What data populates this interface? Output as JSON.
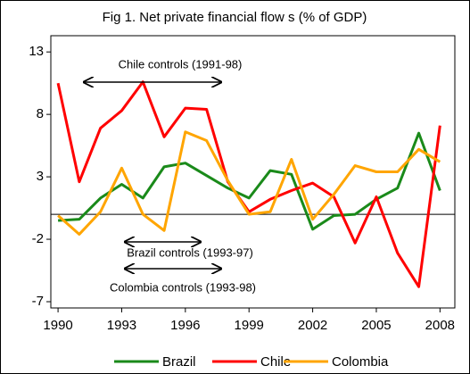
{
  "chart_data": {
    "type": "line",
    "title": "Fig 1. Net private financial flow s (% of GDP)",
    "x": [
      1990,
      1991,
      1992,
      1993,
      1994,
      1995,
      1996,
      1997,
      1998,
      1999,
      2000,
      2001,
      2002,
      2003,
      2004,
      2005,
      2006,
      2007,
      2008
    ],
    "series": [
      {
        "name": "Brazil",
        "color": "#1a8a1a",
        "values": [
          -0.5,
          -0.4,
          1.3,
          2.4,
          1.3,
          3.8,
          4.1,
          3.1,
          2.1,
          1.3,
          3.5,
          3.2,
          -1.2,
          -0.1,
          0,
          1.2,
          2.1,
          6.5,
          1.9
        ]
      },
      {
        "name": "Chile",
        "color": "#ff0000",
        "values": [
          10.5,
          2.6,
          6.9,
          8.3,
          10.6,
          6.2,
          8.5,
          8.4,
          2.6,
          0.2,
          1.2,
          1.9,
          2.5,
          1.4,
          -2.3,
          1.4,
          -3.1,
          -5.8,
          7.1
        ]
      },
      {
        "name": "Colombia",
        "color": "#ffa500",
        "values": [
          -0.1,
          -1.6,
          0.2,
          3.7,
          0,
          -1.3,
          6.6,
          5.9,
          2.7,
          0,
          0.2,
          4.4,
          -0.4,
          1.6,
          3.9,
          3.4,
          3.4,
          5.2,
          4.2
        ]
      }
    ],
    "xlim": [
      1989.66,
      2008.7
    ],
    "xticks": [
      1990,
      1993,
      1996,
      1999,
      2002,
      2005,
      2008
    ],
    "ylim": [
      -7.5,
      14.3
    ],
    "yticks": [
      13,
      8,
      3,
      -2,
      -7
    ],
    "annotations": [
      "Chile controls (1991-98)",
      "Brazil controls (1993-97)",
      "Colombia controls (1993-98)"
    ],
    "legend": "bottom"
  }
}
